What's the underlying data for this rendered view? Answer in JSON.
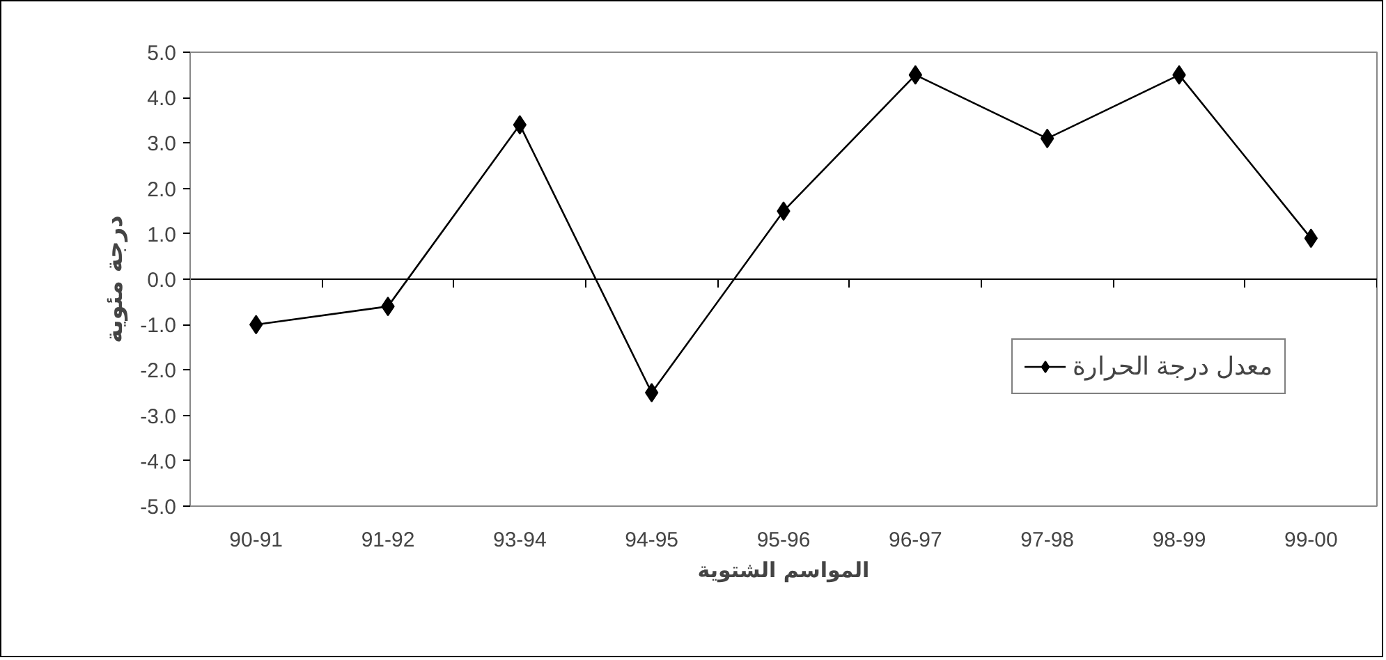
{
  "chart_data": {
    "type": "line",
    "xlabel": "المواسم الشتوية",
    "ylabel": "درجة مئوية",
    "categories": [
      "90-91",
      "91-92",
      "93-94",
      "94-95",
      "95-96",
      "96-97",
      "97-98",
      "98-99",
      "99-00"
    ],
    "series": [
      {
        "name": "معدل درجة الحرارة",
        "color": "#000000",
        "values": [
          -1.0,
          -0.6,
          3.4,
          -2.5,
          1.5,
          4.5,
          3.1,
          4.5,
          0.9
        ]
      }
    ],
    "ylim": [
      -5,
      5
    ],
    "yticks": [
      {
        "value": -5,
        "label": "-5.0"
      },
      {
        "value": -4,
        "label": "-4.0"
      },
      {
        "value": -3,
        "label": "-3.0"
      },
      {
        "value": -2,
        "label": "-2.0"
      },
      {
        "value": -1,
        "label": "-1.0"
      },
      {
        "value": 0,
        "label": "0.0"
      },
      {
        "value": 1,
        "label": "1.0"
      },
      {
        "value": 2,
        "label": "2.0"
      },
      {
        "value": 3,
        "label": "3.0"
      },
      {
        "value": 4,
        "label": "4.0"
      },
      {
        "value": 5,
        "label": "5.0"
      }
    ],
    "marker": "diamond",
    "line_style": "solid",
    "legend": "right"
  }
}
